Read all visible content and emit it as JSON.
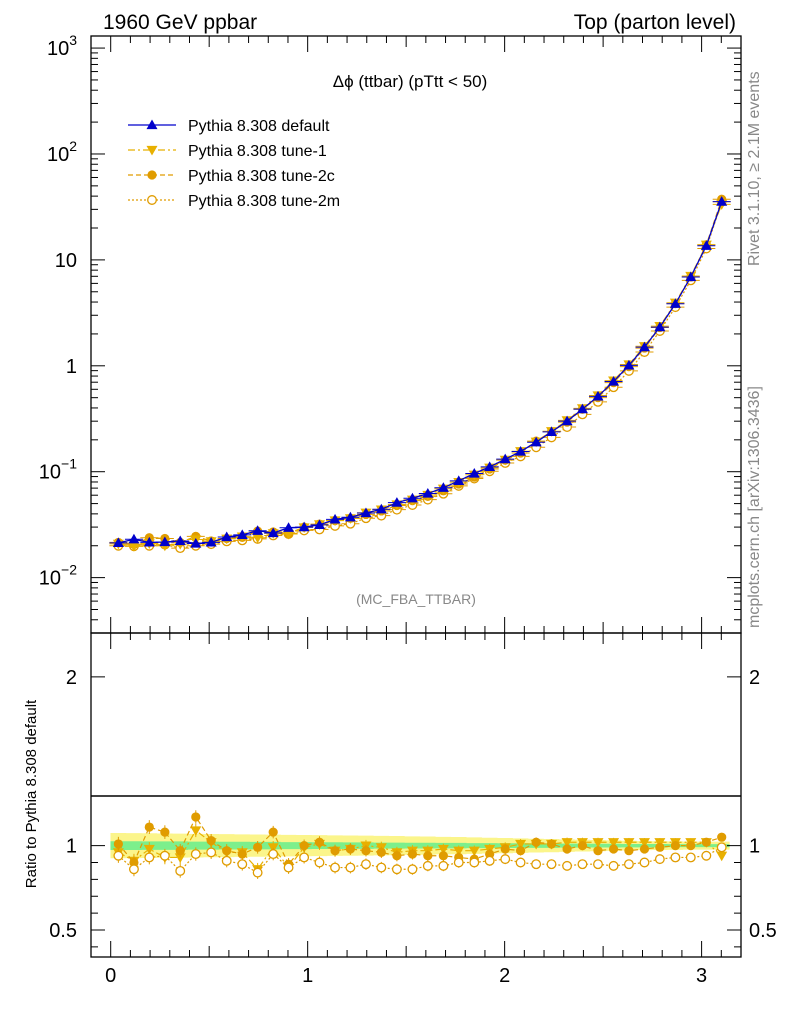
{
  "header": {
    "left": "1960 GeV ppbar",
    "right": "Top (parton level)"
  },
  "side_labels": {
    "rivet": "Rivet 3.1.10, ≥ 2.1M events",
    "mcplots": "mcplots.cern.ch [arXiv:1306.3436]"
  },
  "chart_data": [
    {
      "type": "scatter",
      "panel": "main",
      "title": "Δϕ (ttbar) (pTtt < 50)",
      "analysis_label": "(MC_FBA_TTBAR)",
      "yscale": "log",
      "xlim": [
        -0.1,
        3.2
      ],
      "ylim": [
        0.003,
        1300
      ],
      "ytick_labels": [
        {
          "value": 0.01,
          "base": "10",
          "exp": "−2"
        },
        {
          "value": 0.1,
          "base": "10",
          "exp": "−1"
        },
        {
          "value": 1,
          "base": "1",
          "exp": ""
        },
        {
          "value": 10,
          "base": "10",
          "exp": ""
        },
        {
          "value": 100,
          "base": "10",
          "exp": "2"
        },
        {
          "value": 1000,
          "base": "10",
          "exp": "3"
        }
      ],
      "legend_position": "top-left",
      "x": [
        0.039,
        0.118,
        0.196,
        0.275,
        0.353,
        0.432,
        0.51,
        0.589,
        0.668,
        0.746,
        0.825,
        0.903,
        0.982,
        1.06,
        1.139,
        1.217,
        1.296,
        1.374,
        1.453,
        1.532,
        1.61,
        1.689,
        1.767,
        1.846,
        1.924,
        2.003,
        2.081,
        2.16,
        2.238,
        2.317,
        2.395,
        2.474,
        2.553,
        2.631,
        2.71,
        2.788,
        2.867,
        2.945,
        3.024,
        3.102
      ],
      "series": [
        {
          "name": "Pythia 8.308 default",
          "color": "#0000cc",
          "marker": "triangle-up",
          "line": "solid",
          "values": [
            0.0213,
            0.023,
            0.0215,
            0.0217,
            0.0222,
            0.021,
            0.0215,
            0.0242,
            0.0253,
            0.0277,
            0.0264,
            0.0296,
            0.03,
            0.0315,
            0.0355,
            0.0372,
            0.0408,
            0.0442,
            0.051,
            0.0562,
            0.0622,
            0.0705,
            0.082,
            0.0962,
            0.1112,
            0.1313,
            0.1552,
            0.19,
            0.2377,
            0.3,
            0.39,
            0.515,
            0.71,
            1.01,
            1.5,
            2.32,
            3.85,
            6.9,
            13.6,
            35.5
          ]
        },
        {
          "name": "Pythia 8.308 tune-1",
          "color": "#e8b000",
          "marker": "triangle-down",
          "line": "dashdot",
          "values": [
            0.0208,
            0.0198,
            0.021,
            0.02,
            0.0207,
            0.0229,
            0.022,
            0.0233,
            0.0244,
            0.0238,
            0.0262,
            0.0258,
            0.0297,
            0.0318,
            0.0346,
            0.0363,
            0.041,
            0.0438,
            0.049,
            0.0543,
            0.0603,
            0.069,
            0.0797,
            0.0935,
            0.109,
            0.1295,
            0.156,
            0.192,
            0.241,
            0.305,
            0.396,
            0.525,
            0.725,
            1.03,
            1.53,
            2.37,
            3.94,
            7.05,
            13.9,
            33.4
          ]
        },
        {
          "name": "Pythia 8.308 tune-2c",
          "color": "#e09c00",
          "marker": "circle",
          "line": "dashed",
          "values": [
            0.0215,
            0.0206,
            0.0238,
            0.0234,
            0.0215,
            0.0245,
            0.0222,
            0.0234,
            0.024,
            0.0275,
            0.027,
            0.0262,
            0.03,
            0.032,
            0.0345,
            0.0363,
            0.0395,
            0.0426,
            0.048,
            0.0533,
            0.0585,
            0.066,
            0.0765,
            0.0888,
            0.106,
            0.1285,
            0.15,
            0.1945,
            0.2395,
            0.294,
            0.389,
            0.501,
            0.693,
            0.982,
            1.47,
            2.3,
            3.86,
            6.9,
            13.9,
            37.4
          ]
        },
        {
          "name": "Pythia 8.308 tune-2m",
          "color": "#e09c00",
          "marker": "open-circle",
          "line": "dotted",
          "values": [
            0.02,
            0.0198,
            0.02,
            0.0205,
            0.019,
            0.02,
            0.0207,
            0.022,
            0.0225,
            0.0232,
            0.025,
            0.0258,
            0.0279,
            0.0285,
            0.0308,
            0.0323,
            0.0364,
            0.0385,
            0.0438,
            0.0485,
            0.0545,
            0.062,
            0.0735,
            0.0862,
            0.101,
            0.121,
            0.1395,
            0.17,
            0.211,
            0.264,
            0.348,
            0.457,
            0.628,
            0.895,
            1.35,
            2.13,
            3.58,
            6.41,
            12.8,
            35.4
          ]
        }
      ]
    },
    {
      "type": "scatter",
      "panel": "ratio",
      "ylabel": "Ratio to Pythia 8.308 default",
      "xlim": [
        -0.1,
        3.2
      ],
      "ylim": [
        0.34,
        2.26
      ],
      "x_tick_labels": [
        "0",
        "1",
        "2",
        "3"
      ],
      "y_tick_labels": [
        "0.5",
        "1",
        "2"
      ],
      "band_green_halfwidth": [
        0.026,
        0.026,
        0.025,
        0.025,
        0.025,
        0.024,
        0.024,
        0.023,
        0.023,
        0.022,
        0.022,
        0.021,
        0.021,
        0.02,
        0.02,
        0.019,
        0.019,
        0.018,
        0.018,
        0.017,
        0.017,
        0.016,
        0.016,
        0.015,
        0.015,
        0.014,
        0.014,
        0.013,
        0.013,
        0.012,
        0.012,
        0.011,
        0.011,
        0.01,
        0.01,
        0.01,
        0.009,
        0.009,
        0.009,
        0.009
      ],
      "band_yellow_halfwidth": [
        0.075,
        0.074,
        0.073,
        0.072,
        0.071,
        0.07,
        0.069,
        0.068,
        0.067,
        0.066,
        0.065,
        0.064,
        0.063,
        0.062,
        0.061,
        0.06,
        0.059,
        0.058,
        0.057,
        0.055,
        0.054,
        0.052,
        0.051,
        0.049,
        0.047,
        0.045,
        0.043,
        0.041,
        0.039,
        0.037,
        0.035,
        0.033,
        0.031,
        0.029,
        0.027,
        0.026,
        0.025,
        0.024,
        0.024,
        0.024
      ],
      "series": [
        {
          "name": "Pythia 8.308 tune-1",
          "values": [
            0.96,
            0.91,
            0.98,
            0.93,
            0.93,
            1.09,
            1.02,
            0.96,
            0.96,
            0.86,
            0.99,
            0.87,
            0.99,
            1.01,
            0.97,
            0.98,
            1.0,
            0.99,
            0.96,
            0.97,
            0.97,
            0.98,
            0.97,
            0.97,
            0.98,
            0.99,
            1.01,
            1.01,
            1.01,
            1.02,
            1.02,
            1.02,
            1.02,
            1.02,
            1.02,
            1.02,
            1.02,
            1.02,
            1.02,
            0.94
          ]
        },
        {
          "name": "Pythia 8.308 tune-2c",
          "values": [
            1.01,
            0.9,
            1.11,
            1.08,
            0.97,
            1.17,
            1.03,
            0.97,
            0.95,
            0.99,
            1.08,
            0.89,
            1.0,
            1.02,
            0.97,
            0.98,
            0.97,
            0.96,
            0.94,
            0.95,
            0.94,
            0.94,
            0.93,
            0.92,
            0.95,
            0.98,
            0.97,
            1.02,
            1.01,
            0.98,
            1.0,
            0.97,
            0.98,
            0.97,
            0.98,
            0.99,
            1.0,
            1.0,
            1.02,
            1.05
          ]
        },
        {
          "name": "Pythia 8.308 tune-2m",
          "values": [
            0.94,
            0.86,
            0.93,
            0.94,
            0.85,
            0.95,
            0.96,
            0.91,
            0.89,
            0.84,
            0.95,
            0.87,
            0.93,
            0.9,
            0.87,
            0.87,
            0.89,
            0.87,
            0.86,
            0.86,
            0.88,
            0.88,
            0.9,
            0.9,
            0.91,
            0.92,
            0.9,
            0.89,
            0.89,
            0.88,
            0.89,
            0.89,
            0.88,
            0.89,
            0.9,
            0.92,
            0.93,
            0.93,
            0.94,
            0.99
          ]
        }
      ]
    }
  ]
}
